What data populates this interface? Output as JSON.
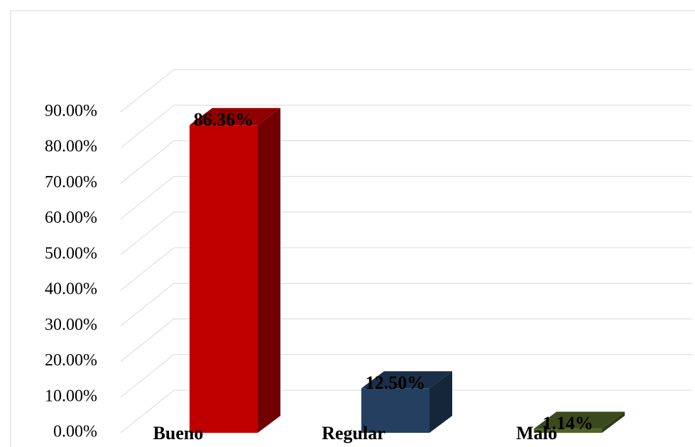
{
  "chart_data": {
    "type": "bar3d",
    "categories": [
      "Bueno",
      "Regular",
      "Malo"
    ],
    "values": [
      86.36,
      12.5,
      1.14
    ],
    "value_labels": [
      "86.36%",
      "12.50%",
      "1.14%"
    ],
    "colors": [
      "#c00000",
      "#243f60",
      "#4f6228"
    ],
    "ylim": [
      0,
      90
    ],
    "yticks": [
      {
        "value": 0,
        "label": "0.00%"
      },
      {
        "value": 10,
        "label": "10.00%"
      },
      {
        "value": 20,
        "label": "20.00%"
      },
      {
        "value": 30,
        "label": "30.00%"
      },
      {
        "value": 40,
        "label": "40.00%"
      },
      {
        "value": 50,
        "label": "50.00%"
      },
      {
        "value": 60,
        "label": "60.00%"
      },
      {
        "value": 70,
        "label": "70.00%"
      },
      {
        "value": 80,
        "label": "80.00%"
      },
      {
        "value": 90,
        "label": "90.00%"
      }
    ],
    "grid": true
  }
}
